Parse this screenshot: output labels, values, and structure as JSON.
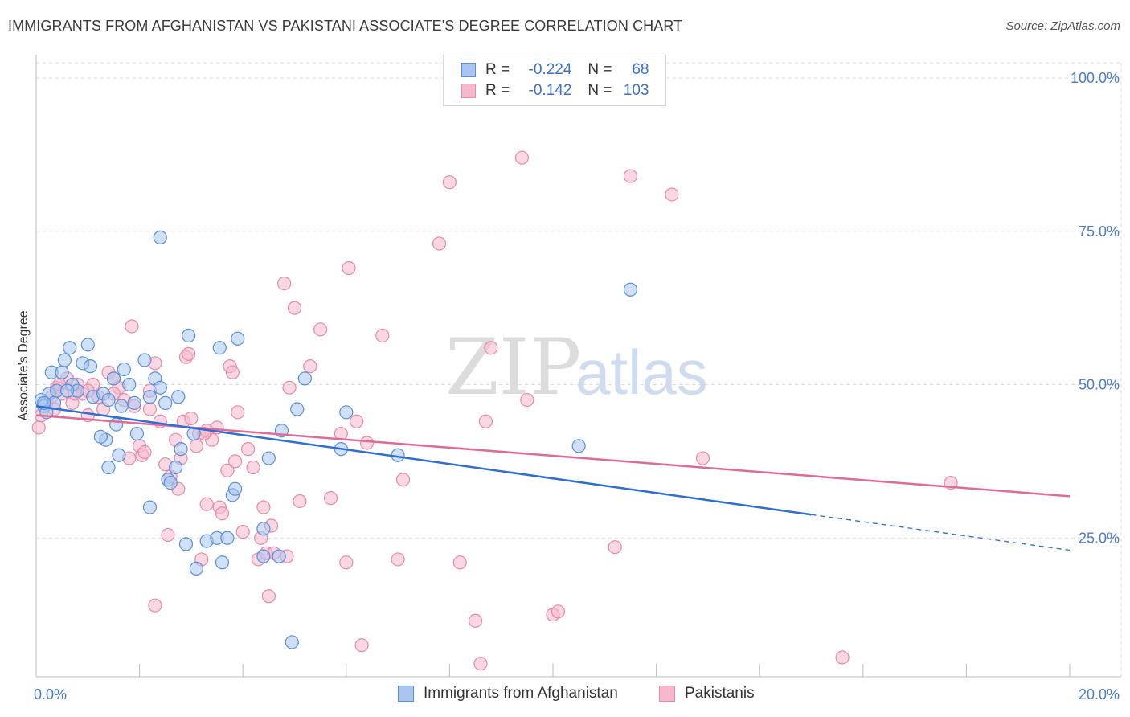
{
  "title": "IMMIGRANTS FROM AFGHANISTAN VS PAKISTANI ASSOCIATE'S DEGREE CORRELATION CHART",
  "source": "Source: ZipAtlas.com",
  "watermark": {
    "zip": "ZIP",
    "atlas": "atlas"
  },
  "colors": {
    "blue_fill": "#a8c6f0",
    "blue_stroke": "#5a8fd8",
    "blue_line": "#2f6fd0",
    "pink_fill": "#f6b8cc",
    "pink_stroke": "#e88aa8",
    "pink_line": "#e06a96",
    "axis_text": "#4a7cc9",
    "grid": "#dddddd"
  },
  "legend": {
    "rows": [
      {
        "r_label": "R =",
        "r_value": "-0.224",
        "n_label": "N =",
        "n_value": "68"
      },
      {
        "r_label": "R =",
        "r_value": "-0.142",
        "n_label": "N =",
        "n_value": "103"
      }
    ]
  },
  "bottom_legend": {
    "series1": "Immigrants from Afghanistan",
    "series2": "Pakistanis"
  },
  "chart_data": {
    "type": "scatter",
    "title": "IMMIGRANTS FROM AFGHANISTAN VS PAKISTANI ASSOCIATE'S DEGREE CORRELATION CHART",
    "xlabel": "",
    "ylabel": "Associate's Degree",
    "xlim": [
      0,
      20
    ],
    "ylim": [
      0,
      105
    ],
    "x_tick_labels": [
      {
        "value": 0,
        "label": "0.0%"
      },
      {
        "value": 20,
        "label": "20.0%"
      }
    ],
    "y_tick_labels": [
      {
        "value": 25,
        "label": "25.0%"
      },
      {
        "value": 50,
        "label": "50.0%"
      },
      {
        "value": 75,
        "label": "75.0%"
      },
      {
        "value": 100,
        "label": "100.0%"
      }
    ],
    "grid": true,
    "series": [
      {
        "name": "Immigrants from Afghanistan",
        "color": "blue",
        "trend": {
          "x0": 0,
          "y0": 46.5,
          "x1": 15.0,
          "y1": 28.8,
          "dash_to_x": 20,
          "dash_to_y": 23.0
        },
        "points": [
          [
            0.1,
            47.5
          ],
          [
            0.15,
            46.5
          ],
          [
            0.2,
            45.5
          ],
          [
            0.25,
            48.5
          ],
          [
            0.3,
            52
          ],
          [
            0.35,
            47
          ],
          [
            0.4,
            49
          ],
          [
            0.5,
            52
          ],
          [
            0.55,
            54
          ],
          [
            0.65,
            56
          ],
          [
            0.7,
            50
          ],
          [
            0.8,
            49
          ],
          [
            0.9,
            53.5
          ],
          [
            1.0,
            56.5
          ],
          [
            1.05,
            53
          ],
          [
            1.1,
            48
          ],
          [
            1.3,
            48.5
          ],
          [
            1.35,
            41
          ],
          [
            1.4,
            36.5
          ],
          [
            1.4,
            47.5
          ],
          [
            1.5,
            51
          ],
          [
            1.55,
            43.5
          ],
          [
            1.6,
            38.5
          ],
          [
            1.65,
            46.5
          ],
          [
            1.7,
            52.5
          ],
          [
            1.8,
            50
          ],
          [
            1.9,
            47
          ],
          [
            1.95,
            42
          ],
          [
            2.1,
            54
          ],
          [
            2.2,
            48
          ],
          [
            2.2,
            30
          ],
          [
            2.3,
            51
          ],
          [
            2.4,
            49.5
          ],
          [
            2.4,
            74
          ],
          [
            2.5,
            47
          ],
          [
            2.55,
            34.5
          ],
          [
            2.6,
            34
          ],
          [
            2.7,
            36.5
          ],
          [
            2.75,
            48
          ],
          [
            2.8,
            39.5
          ],
          [
            2.9,
            24
          ],
          [
            2.95,
            58
          ],
          [
            3.1,
            20
          ],
          [
            3.05,
            42
          ],
          [
            3.3,
            24.5
          ],
          [
            3.5,
            25
          ],
          [
            3.6,
            21
          ],
          [
            3.55,
            56
          ],
          [
            3.7,
            25
          ],
          [
            3.8,
            32
          ],
          [
            3.85,
            33
          ],
          [
            3.9,
            57.5
          ],
          [
            4.4,
            26.5
          ],
          [
            4.4,
            22
          ],
          [
            4.5,
            38
          ],
          [
            4.7,
            22
          ],
          [
            4.75,
            42.5
          ],
          [
            4.95,
            8
          ],
          [
            5.05,
            46
          ],
          [
            5.2,
            51
          ],
          [
            5.9,
            39.5
          ],
          [
            6.0,
            45.5
          ],
          [
            7.0,
            38.5
          ],
          [
            10.5,
            40
          ],
          [
            11.5,
            65.5
          ],
          [
            0.15,
            47
          ],
          [
            0.6,
            49
          ],
          [
            1.25,
            41.5
          ]
        ]
      },
      {
        "name": "Pakistanis",
        "color": "pink",
        "trend": {
          "x0": 0,
          "y0": 45.0,
          "x1": 20,
          "y1": 31.8
        },
        "points": [
          [
            0.05,
            43
          ],
          [
            0.1,
            45
          ],
          [
            0.2,
            47
          ],
          [
            0.3,
            48
          ],
          [
            0.4,
            49.5
          ],
          [
            0.5,
            48.5
          ],
          [
            0.6,
            51
          ],
          [
            0.7,
            47
          ],
          [
            0.8,
            50
          ],
          [
            0.9,
            48.5
          ],
          [
            1.0,
            45
          ],
          [
            1.1,
            50
          ],
          [
            1.2,
            48
          ],
          [
            1.3,
            46
          ],
          [
            1.4,
            52
          ],
          [
            1.5,
            51
          ],
          [
            1.6,
            49.5
          ],
          [
            1.7,
            47.5
          ],
          [
            1.8,
            38
          ],
          [
            1.85,
            59.5
          ],
          [
            1.9,
            46.5
          ],
          [
            2.0,
            40
          ],
          [
            2.05,
            38.5
          ],
          [
            2.1,
            39
          ],
          [
            2.2,
            46
          ],
          [
            2.3,
            53.5
          ],
          [
            2.4,
            44
          ],
          [
            2.5,
            37
          ],
          [
            2.55,
            25.5
          ],
          [
            2.6,
            35
          ],
          [
            2.7,
            41
          ],
          [
            2.75,
            33
          ],
          [
            2.8,
            38
          ],
          [
            2.85,
            44
          ],
          [
            2.9,
            54.5
          ],
          [
            3.0,
            44.5
          ],
          [
            3.1,
            40
          ],
          [
            3.15,
            42
          ],
          [
            3.2,
            21.5
          ],
          [
            3.3,
            42.5
          ],
          [
            3.4,
            41
          ],
          [
            3.5,
            43
          ],
          [
            3.55,
            30
          ],
          [
            3.6,
            29
          ],
          [
            3.7,
            36
          ],
          [
            3.75,
            53
          ],
          [
            3.8,
            52
          ],
          [
            3.85,
            37.5
          ],
          [
            3.9,
            45.5
          ],
          [
            4.0,
            26
          ],
          [
            4.1,
            39.5
          ],
          [
            4.2,
            36.5
          ],
          [
            4.3,
            21.5
          ],
          [
            4.35,
            25
          ],
          [
            4.4,
            30
          ],
          [
            4.45,
            22.5
          ],
          [
            4.5,
            15.5
          ],
          [
            4.55,
            27
          ],
          [
            4.6,
            22.5
          ],
          [
            4.8,
            66.5
          ],
          [
            4.9,
            49.5
          ],
          [
            5.0,
            62.5
          ],
          [
            5.1,
            31
          ],
          [
            5.3,
            53
          ],
          [
            5.5,
            59
          ],
          [
            5.7,
            31.5
          ],
          [
            5.9,
            42
          ],
          [
            6.0,
            21
          ],
          [
            6.05,
            69
          ],
          [
            6.2,
            44
          ],
          [
            6.3,
            7.5
          ],
          [
            6.4,
            40.5
          ],
          [
            6.7,
            58
          ],
          [
            7.0,
            21.5
          ],
          [
            7.1,
            34.5
          ],
          [
            7.8,
            73
          ],
          [
            8.0,
            83
          ],
          [
            8.2,
            21
          ],
          [
            8.5,
            11.5
          ],
          [
            8.6,
            4.5
          ],
          [
            8.7,
            44
          ],
          [
            8.8,
            56
          ],
          [
            9.4,
            87
          ],
          [
            9.5,
            47.5
          ],
          [
            10.0,
            12.5
          ],
          [
            10.1,
            13
          ],
          [
            11.2,
            23.5
          ],
          [
            11.5,
            84
          ],
          [
            12.3,
            81
          ],
          [
            12.9,
            38
          ],
          [
            15.6,
            5.5
          ],
          [
            17.7,
            34
          ],
          [
            2.3,
            14
          ],
          [
            1.5,
            48.5
          ],
          [
            2.2,
            49
          ],
          [
            1.0,
            49
          ],
          [
            0.35,
            46
          ],
          [
            0.75,
            48.5
          ],
          [
            3.3,
            30.5
          ],
          [
            2.95,
            55
          ],
          [
            3.25,
            42
          ],
          [
            4.85,
            22
          ],
          [
            0.45,
            50
          ]
        ]
      }
    ]
  }
}
